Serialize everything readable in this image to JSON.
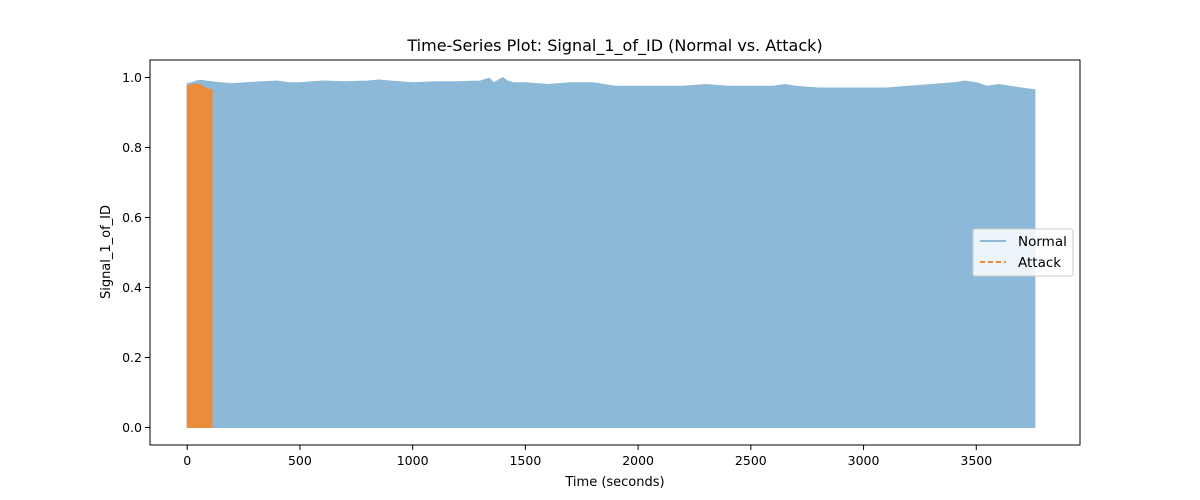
{
  "chart_data": {
    "type": "area",
    "title": "Time-Series Plot: Signal_1_of_ID (Normal vs. Attack)",
    "xlabel": "Time (seconds)",
    "ylabel": "Signal_1_of_ID",
    "xlim": [
      -165,
      3960
    ],
    "ylim": [
      -0.05,
      1.05
    ],
    "xticks": [
      0,
      500,
      1000,
      1500,
      2000,
      2500,
      3000,
      3500
    ],
    "yticks": [
      0.0,
      0.2,
      0.4,
      0.6,
      0.8,
      1.0
    ],
    "x_tick_labels": [
      "0",
      "500",
      "1000",
      "1500",
      "2000",
      "2500",
      "3000",
      "3500"
    ],
    "y_tick_labels": [
      "0.0",
      "0.2",
      "0.4",
      "0.6",
      "0.8",
      "1.0"
    ],
    "grid": false,
    "legend_position": "center-right",
    "series": [
      {
        "name": "Normal",
        "color": "#8db9d9",
        "line_style": "solid",
        "x": [
          0,
          20,
          40,
          60,
          80,
          110,
          150,
          200,
          260,
          330,
          400,
          450,
          500,
          600,
          700,
          800,
          850,
          900,
          1000,
          1100,
          1200,
          1300,
          1340,
          1360,
          1400,
          1420,
          1450,
          1500,
          1600,
          1700,
          1800,
          1900,
          2000,
          2100,
          2200,
          2300,
          2400,
          2500,
          2600,
          2650,
          2700,
          2800,
          2900,
          3000,
          3100,
          3200,
          3300,
          3400,
          3450,
          3500,
          3550,
          3600,
          3650,
          3700,
          3760
        ],
        "upper": [
          0.983,
          0.985,
          0.99,
          0.992,
          0.99,
          0.988,
          0.985,
          0.982,
          0.985,
          0.988,
          0.99,
          0.985,
          0.985,
          0.99,
          0.988,
          0.99,
          0.993,
          0.99,
          0.985,
          0.988,
          0.988,
          0.99,
          0.998,
          0.985,
          1.0,
          0.99,
          0.985,
          0.985,
          0.98,
          0.985,
          0.985,
          0.975,
          0.975,
          0.975,
          0.975,
          0.98,
          0.975,
          0.975,
          0.975,
          0.98,
          0.975,
          0.97,
          0.97,
          0.97,
          0.97,
          0.975,
          0.98,
          0.985,
          0.99,
          0.985,
          0.975,
          0.98,
          0.975,
          0.97,
          0.965
        ],
        "lower": [
          0.0,
          0.0,
          0.0,
          0.0,
          0.0,
          0.0,
          0.0,
          0.0,
          0.0,
          0.0,
          0.0,
          0.0,
          0.0,
          0.0,
          0.0,
          0.0,
          0.0,
          0.0,
          0.0,
          0.0,
          0.0,
          0.0,
          0.0,
          0.0,
          0.0,
          0.0,
          0.0,
          0.0,
          0.0,
          0.0,
          0.0,
          0.0,
          0.0,
          0.0,
          0.0,
          0.0,
          0.0,
          0.0,
          0.0,
          0.0,
          0.0,
          0.0,
          0.0,
          0.0,
          0.0,
          0.0,
          0.0,
          0.0,
          0.0,
          0.0,
          0.0,
          0.0,
          0.0,
          0.0,
          0.0
        ]
      },
      {
        "name": "Attack",
        "color": "#eb8c3a",
        "line_style": "dashed",
        "x": [
          0,
          10,
          20,
          30,
          40,
          50,
          60,
          70,
          80,
          90,
          100,
          110
        ],
        "upper": [
          0.975,
          0.978,
          0.98,
          0.98,
          0.981,
          0.98,
          0.978,
          0.975,
          0.97,
          0.968,
          0.966,
          0.965
        ],
        "lower": [
          0.0,
          0.0,
          0.0,
          0.0,
          0.0,
          0.0,
          0.0,
          0.0,
          0.0,
          0.0,
          0.0,
          0.0
        ]
      }
    ]
  }
}
